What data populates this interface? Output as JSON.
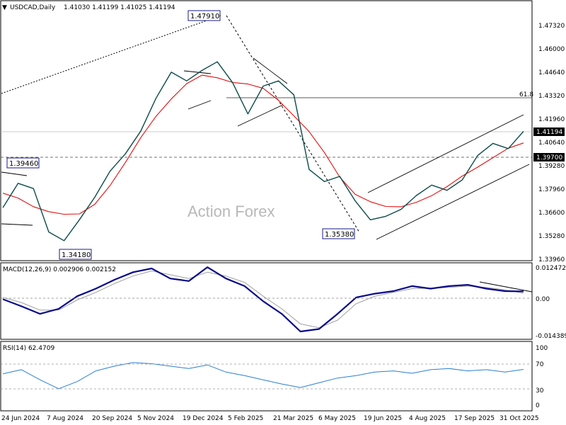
{
  "header": {
    "symbol": "USDCAD,Daily",
    "ohlc": "1.41030 1.41199 1.41025 1.41194",
    "macd": "MACD(12,26,9) 0.002906 0.002152",
    "rsi": "RSI(14) 62.4709"
  },
  "watermark": "Action Forex",
  "colors": {
    "price": "#0d4b4b",
    "ma": "#e01010",
    "macd_line": "#0a0a8a",
    "macd_signal": "#a0a0a0",
    "rsi_line": "#2a7fd4",
    "box_border": "#1a1a8a"
  },
  "chart_data": [
    {
      "type": "line",
      "panel": "price",
      "yaxis_ticks": [
        "1.47320",
        "1.46000",
        "1.44640",
        "1.43320",
        "1.41960",
        "1.40640",
        "1.39280",
        "1.37960",
        "1.36600",
        "1.35280",
        "1.33960"
      ],
      "ylim": [
        1.3383,
        1.4843
      ],
      "current_price_label": "1.41194",
      "level_label": "1.39700",
      "fib_label": "61.8",
      "annotations": [
        "1.47910",
        "1.39460",
        "1.34180",
        "1.35380"
      ],
      "x_dates": [
        "24 Jun 2024",
        "7 Aug 2024",
        "20 Sep 2024",
        "5 Nov 2024",
        "19 Dec 2024",
        "5 Feb 2025",
        "21 Mar 2025",
        "6 May 2025",
        "19 Jun 2025",
        "4 Aug 2025",
        "17 Sep 2025",
        "31 Oct 2025"
      ],
      "series": [
        {
          "x": [
            "24 Jun 2024",
            "14 Jul 2024",
            "7 Aug 2024",
            "20 Aug 2024",
            "5 Sep 2024",
            "20 Sep 2024",
            "7 Oct 2024",
            "20 Oct 2024",
            "5 Nov 2024",
            "20 Nov 2024",
            "5 Dec 2024",
            "19 Dec 2024",
            "2 Jan 2025",
            "16 Jan 2025",
            "3 Feb 2025",
            "5 Feb 2025",
            "20 Feb 2025",
            "5 Mar 2025",
            "21 Mar 2025",
            "8 Apr 2025",
            "20 Apr 2025",
            "6 May 2025",
            "20 May 2025",
            "2 Jun 2025",
            "19 Jun 2025",
            "5 Jul 2025",
            "20 Jul 2025",
            "4 Aug 2025",
            "20 Aug 2025",
            "5 Sep 2025",
            "17 Sep 2025",
            "2 Oct 2025",
            "15 Oct 2025",
            "31 Oct 2025",
            "6 Nov 2025"
          ],
          "values": [
            1.368,
            1.382,
            1.379,
            1.354,
            1.349,
            1.361,
            1.374,
            1.389,
            1.399,
            1.412,
            1.431,
            1.446,
            1.441,
            1.447,
            1.452,
            1.44,
            1.422,
            1.438,
            1.441,
            1.433,
            1.39,
            1.383,
            1.386,
            1.372,
            1.361,
            1.363,
            1.367,
            1.375,
            1.381,
            1.378,
            1.384,
            1.398,
            1.405,
            1.402,
            1.41194
          ]
        }
      ]
    },
    {
      "type": "line",
      "panel": "macd",
      "yaxis_ticks": [
        "0.012472",
        "0.00",
        "-0.014389"
      ],
      "ylim": [
        -0.0158,
        0.0134
      ],
      "series": [
        {
          "values": [
            -0.0002,
            -0.003,
            -0.006,
            -0.004,
            0.001,
            0.004,
            0.0075,
            0.0105,
            0.012,
            0.008,
            0.007,
            0.0125,
            0.008,
            0.005,
            -0.001,
            -0.006,
            -0.013,
            -0.012,
            -0.006,
            0.0005,
            0.002,
            0.003,
            0.005,
            0.004,
            0.005,
            0.0055,
            0.004,
            0.003,
            0.0029
          ]
        },
        {
          "values": [
            0.0005,
            -0.0015,
            -0.0045,
            -0.0045,
            -0.0005,
            0.0025,
            0.006,
            0.009,
            0.011,
            0.0095,
            0.008,
            0.0105,
            0.009,
            0.0065,
            0.001,
            -0.004,
            -0.01,
            -0.0115,
            -0.0085,
            -0.002,
            0.001,
            0.0025,
            0.004,
            0.0042,
            0.0045,
            0.005,
            0.0045,
            0.0035,
            0.0022
          ]
        }
      ]
    },
    {
      "type": "line",
      "panel": "rsi",
      "yaxis_ticks": [
        "100",
        "70",
        "30",
        "0"
      ],
      "ylim": [
        -6,
        106
      ],
      "series": [
        {
          "values": [
            55,
            62,
            45,
            30,
            42,
            60,
            68,
            74,
            72,
            68,
            64,
            70,
            58,
            52,
            45,
            38,
            32,
            40,
            48,
            52,
            58,
            60,
            56,
            62,
            64,
            60,
            62,
            58,
            62.47
          ]
        }
      ]
    }
  ]
}
